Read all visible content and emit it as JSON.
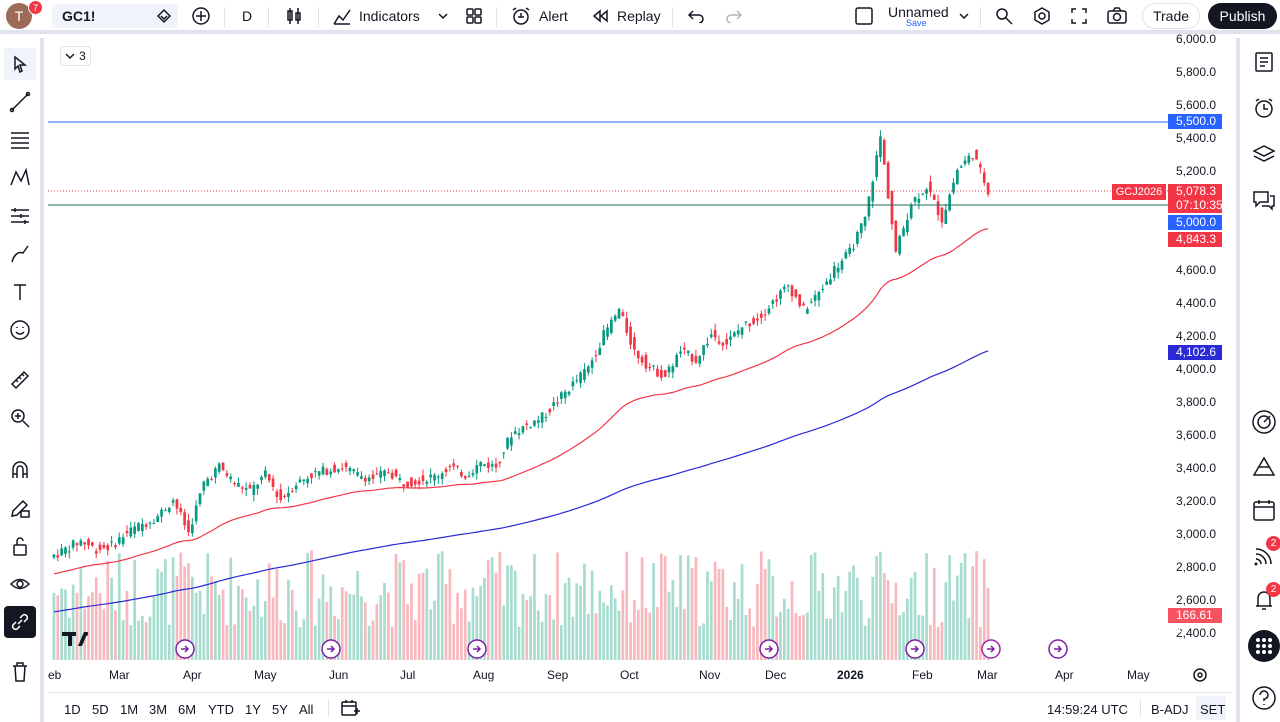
{
  "topbar": {
    "avatar_letter": "T",
    "avatar_badge": "7",
    "symbol": "GC1!",
    "interval": "D",
    "indicators_label": "Indicators",
    "alert_label": "Alert",
    "replay_label": "Replay",
    "layout_name": "Unnamed",
    "layout_save": "Save",
    "trade_label": "Trade",
    "publish_label": "Publish"
  },
  "legend": {
    "collapse_count": "3"
  },
  "price_scale": {
    "ticks": [
      "6,000.0",
      "5,800.0",
      "5,600.0",
      "5,400.0",
      "5,200.0",
      "4,600.0",
      "4,400.0",
      "4,200.0",
      "4,000.0",
      "3,800.0",
      "3,600.0",
      "3,400.0",
      "3,200.0",
      "3,000.0",
      "2,800.0",
      "2,600.0",
      "2,400.0"
    ],
    "tag_resistance": "5,500.0",
    "tag_symbol": "GCJ2026",
    "tag_last": "5,078.3",
    "tag_countdown": "07:10:35",
    "tag_support": "5,000.0",
    "tag_ema50": "4,843.3",
    "tag_ema200": "4,102.6",
    "tag_volume": "166.61 K"
  },
  "time_scale": [
    "eb",
    "Mar",
    "Apr",
    "May",
    "Jun",
    "Jul",
    "Aug",
    "Sep",
    "Oct",
    "Nov",
    "Dec",
    "2026",
    "Feb",
    "Mar",
    "Apr",
    "May"
  ],
  "bottom_bar": {
    "ranges": [
      "1D",
      "5D",
      "1M",
      "3M",
      "6M",
      "YTD",
      "1Y",
      "5Y",
      "All"
    ],
    "clock": "14:59:24 UTC",
    "adj": "B-ADJ",
    "session": "SET"
  },
  "right_badges": {
    "ideas": "2",
    "notifications": "2"
  },
  "colors": {
    "up": "#089981",
    "down": "#f23645",
    "ema50": "#f23645",
    "ema200": "#2929d6",
    "hline_blue": "#2962ff",
    "hline_teal": "#1c6b5a"
  },
  "chart_data": {
    "type": "candlestick",
    "ylim": [
      2300,
      6000
    ],
    "approx_closes": [
      2850,
      2900,
      2950,
      2900,
      2920,
      3000,
      3050,
      3100,
      3200,
      3000,
      3300,
      3400,
      3300,
      3250,
      3350,
      3200,
      3300,
      3350,
      3380,
      3400,
      3350,
      3330,
      3370,
      3300,
      3320,
      3340,
      3400,
      3350,
      3420,
      3400,
      3600,
      3650,
      3700,
      3800,
      3900,
      4000,
      4200,
      4350,
      4100,
      4000,
      3950,
      4100,
      4050,
      4200,
      4150,
      4250,
      4300,
      4400,
      4500,
      4350,
      4450,
      4600,
      4700,
      4900,
      5400,
      4700,
      5000,
      5100,
      4900,
      5200,
      5300,
      5078
    ],
    "ema50_end": 4843.3,
    "ema200_end": 4102.6,
    "hlines": [
      5500,
      5000
    ]
  }
}
